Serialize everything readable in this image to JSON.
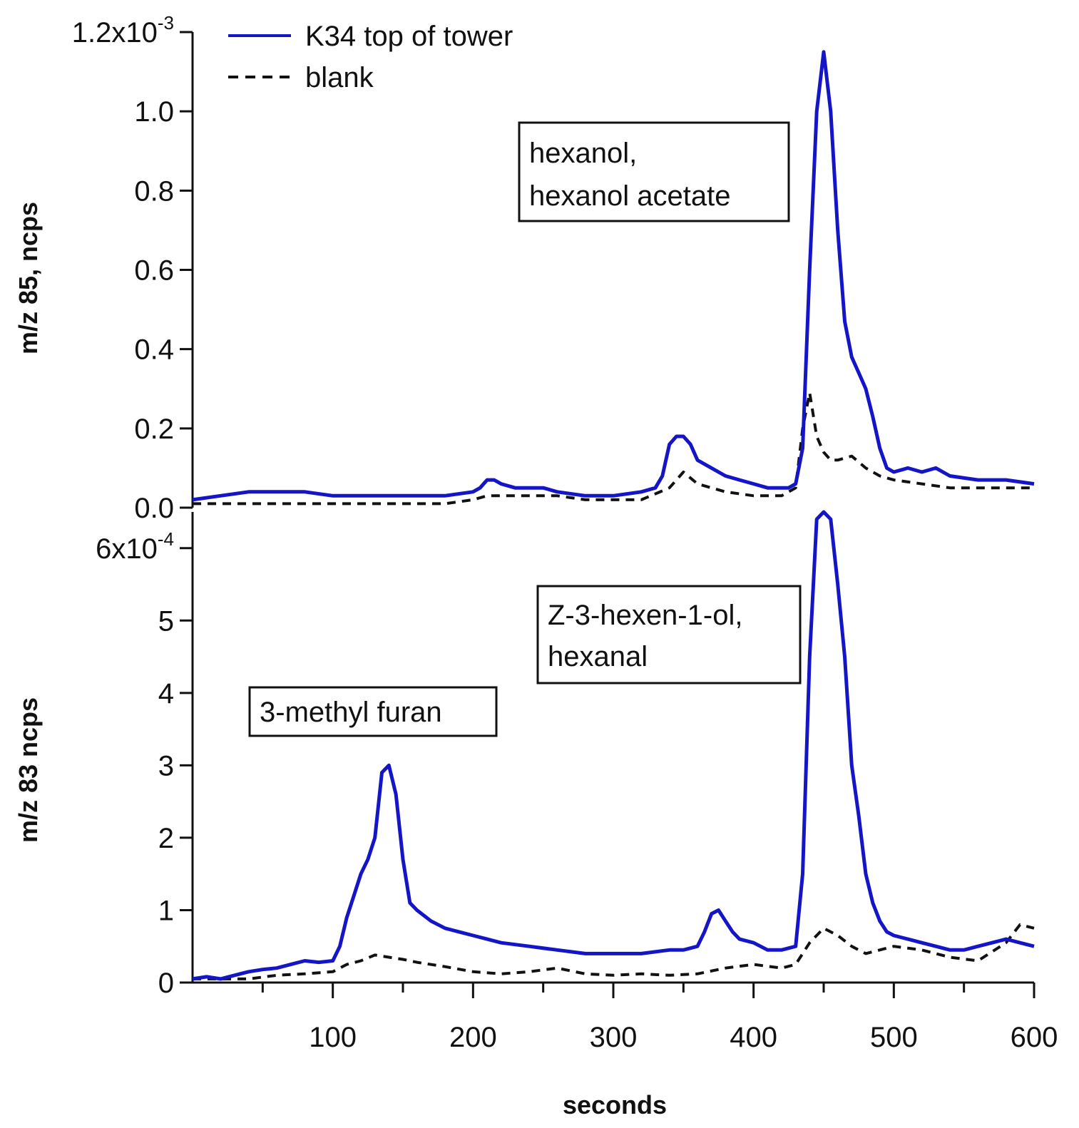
{
  "colors": {
    "sample": "#1515c8",
    "blank": "#111111"
  },
  "legend": {
    "sample": "K34 top of tower",
    "blank": "blank"
  },
  "chart_data": [
    {
      "type": "line",
      "panel": "top",
      "ylabel": "m/z 85, ncps",
      "xlim": [
        0,
        600
      ],
      "ylim": [
        0,
        1.2
      ],
      "y_multiplier": "x10",
      "y_multiplier_exponent": "-3",
      "y_ticks": [
        "0.0",
        "0.2",
        "0.4",
        "0.6",
        "0.8",
        "1.0",
        "1.2"
      ],
      "annotations": [
        {
          "lines": [
            "hexanol,",
            "hexanol acetate"
          ]
        }
      ],
      "series": [
        {
          "name": "K34 top of tower",
          "style": "solid",
          "x": [
            0,
            20,
            40,
            60,
            80,
            100,
            120,
            140,
            160,
            180,
            200,
            205,
            210,
            215,
            220,
            230,
            240,
            250,
            260,
            280,
            300,
            320,
            330,
            335,
            340,
            345,
            350,
            355,
            360,
            370,
            380,
            390,
            400,
            410,
            420,
            425,
            430,
            435,
            440,
            445,
            450,
            455,
            460,
            465,
            470,
            475,
            480,
            485,
            490,
            495,
            500,
            510,
            520,
            530,
            540,
            560,
            580,
            600
          ],
          "y": [
            0.02,
            0.03,
            0.04,
            0.04,
            0.04,
            0.03,
            0.03,
            0.03,
            0.03,
            0.03,
            0.04,
            0.05,
            0.07,
            0.07,
            0.06,
            0.05,
            0.05,
            0.05,
            0.04,
            0.03,
            0.03,
            0.04,
            0.05,
            0.08,
            0.16,
            0.18,
            0.18,
            0.16,
            0.12,
            0.1,
            0.08,
            0.07,
            0.06,
            0.05,
            0.05,
            0.05,
            0.06,
            0.15,
            0.6,
            1.0,
            1.15,
            1.0,
            0.7,
            0.47,
            0.38,
            0.34,
            0.3,
            0.23,
            0.15,
            0.1,
            0.09,
            0.1,
            0.09,
            0.1,
            0.08,
            0.07,
            0.07,
            0.06
          ]
        },
        {
          "name": "blank",
          "style": "dashed",
          "x": [
            0,
            20,
            40,
            60,
            80,
            100,
            120,
            140,
            160,
            180,
            200,
            210,
            220,
            240,
            260,
            280,
            300,
            320,
            340,
            350,
            360,
            370,
            380,
            400,
            420,
            430,
            435,
            440,
            445,
            450,
            455,
            460,
            470,
            480,
            490,
            500,
            520,
            540,
            560,
            580,
            600
          ],
          "y": [
            0.01,
            0.01,
            0.01,
            0.01,
            0.01,
            0.01,
            0.01,
            0.01,
            0.01,
            0.01,
            0.02,
            0.03,
            0.03,
            0.03,
            0.03,
            0.02,
            0.02,
            0.02,
            0.05,
            0.09,
            0.06,
            0.05,
            0.04,
            0.03,
            0.03,
            0.05,
            0.2,
            0.29,
            0.18,
            0.14,
            0.12,
            0.12,
            0.13,
            0.1,
            0.08,
            0.07,
            0.06,
            0.05,
            0.05,
            0.05,
            0.05
          ]
        }
      ]
    },
    {
      "type": "line",
      "panel": "bottom",
      "xlabel": "seconds",
      "ylabel": "m/z 83 ncps",
      "xlim": [
        0,
        600
      ],
      "ylim": [
        0,
        6.5
      ],
      "y_multiplier": "x10",
      "y_multiplier_exponent": "-4",
      "x_ticks": [
        100,
        200,
        300,
        400,
        500,
        600
      ],
      "y_ticks": [
        "0",
        "1",
        "2",
        "3",
        "4",
        "5",
        "6"
      ],
      "annotations": [
        {
          "lines": [
            "3-methyl furan"
          ]
        },
        {
          "lines": [
            "Z-3-hexen-1-ol,",
            "hexanal"
          ]
        }
      ],
      "series": [
        {
          "name": "K34 top of tower",
          "style": "solid",
          "x": [
            0,
            10,
            20,
            30,
            40,
            50,
            60,
            70,
            80,
            90,
            100,
            105,
            110,
            115,
            120,
            125,
            130,
            135,
            140,
            145,
            150,
            155,
            160,
            170,
            180,
            190,
            200,
            210,
            220,
            240,
            260,
            280,
            300,
            320,
            340,
            350,
            360,
            365,
            370,
            375,
            380,
            385,
            390,
            400,
            410,
            420,
            430,
            435,
            440,
            445,
            450,
            455,
            460,
            465,
            470,
            475,
            480,
            485,
            490,
            495,
            500,
            510,
            520,
            530,
            540,
            550,
            560,
            570,
            580,
            590,
            600
          ],
          "y": [
            0.05,
            0.08,
            0.05,
            0.1,
            0.15,
            0.18,
            0.2,
            0.25,
            0.3,
            0.28,
            0.3,
            0.5,
            0.9,
            1.2,
            1.5,
            1.7,
            2.0,
            2.9,
            3.0,
            2.6,
            1.7,
            1.1,
            1.0,
            0.85,
            0.75,
            0.7,
            0.65,
            0.6,
            0.55,
            0.5,
            0.45,
            0.4,
            0.4,
            0.4,
            0.45,
            0.45,
            0.5,
            0.7,
            0.95,
            1.0,
            0.85,
            0.7,
            0.6,
            0.55,
            0.45,
            0.45,
            0.5,
            1.5,
            4.5,
            6.4,
            6.5,
            6.4,
            5.5,
            4.5,
            3.0,
            2.3,
            1.5,
            1.1,
            0.85,
            0.7,
            0.65,
            0.6,
            0.55,
            0.5,
            0.45,
            0.45,
            0.5,
            0.55,
            0.6,
            0.55,
            0.5
          ]
        },
        {
          "name": "blank",
          "style": "dashed",
          "x": [
            0,
            20,
            40,
            60,
            80,
            100,
            110,
            120,
            130,
            140,
            150,
            160,
            180,
            200,
            220,
            240,
            260,
            280,
            300,
            320,
            340,
            360,
            380,
            400,
            420,
            430,
            440,
            450,
            460,
            470,
            480,
            490,
            500,
            520,
            540,
            560,
            580,
            590,
            600
          ],
          "y": [
            0.05,
            0.05,
            0.05,
            0.1,
            0.12,
            0.15,
            0.25,
            0.3,
            0.38,
            0.35,
            0.32,
            0.28,
            0.22,
            0.15,
            0.12,
            0.15,
            0.2,
            0.12,
            0.1,
            0.12,
            0.1,
            0.12,
            0.2,
            0.25,
            0.2,
            0.25,
            0.55,
            0.75,
            0.65,
            0.5,
            0.4,
            0.45,
            0.5,
            0.45,
            0.35,
            0.3,
            0.55,
            0.8,
            0.75
          ]
        }
      ]
    }
  ]
}
